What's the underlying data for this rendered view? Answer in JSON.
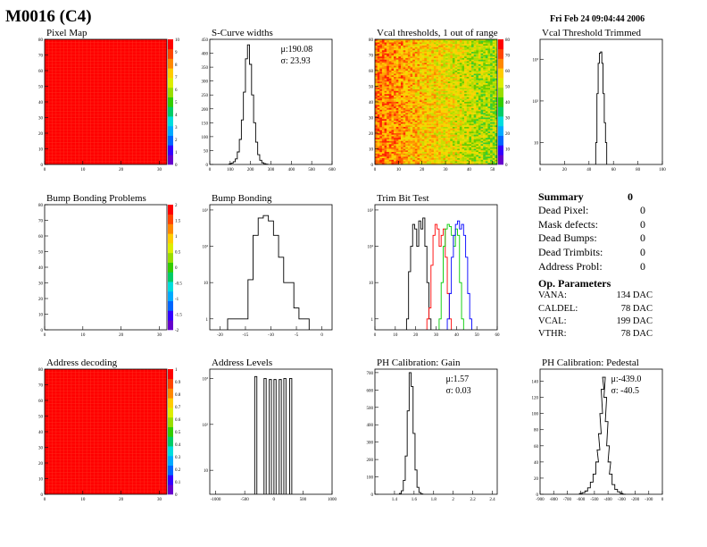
{
  "header": {
    "title": "M0016 (C4)",
    "date": "Fri Feb 24 09:04:44 2006"
  },
  "summary": {
    "title": "Summary",
    "total": "0",
    "rows": [
      {
        "label": "Dead Pixel:",
        "value": "0"
      },
      {
        "label": "Mask defects:",
        "value": "0"
      },
      {
        "label": "Dead Bumps:",
        "value": "0"
      },
      {
        "label": "Dead Trimbits:",
        "value": "0"
      },
      {
        "label": "Address Probl:",
        "value": "0"
      }
    ],
    "op_title": "Op. Parameters",
    "op_rows": [
      {
        "label": "VANA:",
        "value": "134 DAC"
      },
      {
        "label": "CALDEL:",
        "value": "78 DAC"
      },
      {
        "label": "VCAL:",
        "value": "199 DAC"
      },
      {
        "label": "VTHR:",
        "value": "78 DAC"
      }
    ]
  },
  "chart_data": [
    {
      "id": "pixel-map",
      "type": "heatmap",
      "title": "Pixel Map",
      "xlim": [
        0,
        32
      ],
      "ylim": [
        0,
        80
      ],
      "xticks": [
        0,
        10,
        20,
        30
      ],
      "yticks": [
        0,
        10,
        20,
        30,
        40,
        50,
        60,
        70,
        80
      ],
      "fill": "uniform-max",
      "zlim": [
        0,
        10
      ],
      "zticks": [
        0,
        1,
        2,
        3,
        4,
        5,
        6,
        7,
        8,
        9,
        10
      ]
    },
    {
      "id": "scurve-widths",
      "type": "histogram",
      "title": "S-Curve widths",
      "xlim": [
        0,
        600
      ],
      "ylim": [
        0,
        450
      ],
      "xticks": [
        0,
        100,
        200,
        300,
        400,
        500,
        600
      ],
      "yticks": [
        0,
        50,
        100,
        150,
        200,
        250,
        300,
        350,
        400,
        450
      ],
      "stats": [
        "μ:190.08",
        "σ: 23.93"
      ],
      "series": [
        {
          "color": "#000000",
          "x": [
            100,
            110,
            120,
            130,
            140,
            150,
            160,
            170,
            180,
            190,
            200,
            210,
            220,
            230,
            240,
            250,
            260,
            270,
            280
          ],
          "values": [
            2,
            5,
            10,
            20,
            45,
            90,
            160,
            260,
            380,
            430,
            360,
            250,
            150,
            80,
            35,
            15,
            6,
            3,
            1
          ]
        }
      ]
    },
    {
      "id": "vcal-thresholds",
      "type": "heatmap",
      "title": "Vcal thresholds, 1 out of range",
      "xlim": [
        0,
        52
      ],
      "ylim": [
        0,
        80
      ],
      "xticks": [
        0,
        10,
        20,
        30,
        40,
        50
      ],
      "yticks": [
        0,
        10,
        20,
        30,
        40,
        50,
        60,
        70,
        80
      ],
      "fill": "random-gradient",
      "zlim": [
        0,
        80
      ],
      "zticks": [
        0,
        10,
        20,
        30,
        40,
        50,
        60,
        70,
        80
      ]
    },
    {
      "id": "vcal-threshold-trimmed",
      "type": "histogram",
      "title": "Vcal Threshold Trimmed",
      "xlim": [
        0,
        100
      ],
      "ylog": true,
      "ylim": [
        3,
        3000
      ],
      "xticks": [
        0,
        20,
        40,
        60,
        80,
        100
      ],
      "yticks": [
        10,
        100,
        1000
      ],
      "yticklabels": [
        "10",
        "10²",
        "10³"
      ],
      "series": [
        {
          "color": "#000000",
          "x": [
            46,
            47,
            48,
            49,
            50,
            51,
            52,
            53,
            54
          ],
          "values": [
            10,
            150,
            800,
            1400,
            1500,
            800,
            150,
            30,
            10
          ]
        }
      ]
    },
    {
      "id": "bump-bonding-problems",
      "type": "heatmap",
      "title": "Bump Bonding Problems",
      "xlim": [
        0,
        32
      ],
      "ylim": [
        0,
        80
      ],
      "xticks": [
        0,
        10,
        20,
        30
      ],
      "yticks": [
        0,
        10,
        20,
        30,
        40,
        50,
        60,
        70,
        80
      ],
      "fill": "empty",
      "zlim": [
        -2,
        2
      ],
      "zticks": [
        -2,
        -1.5,
        -1,
        -0.5,
        0,
        0.5,
        1,
        1.5,
        2
      ],
      "zticklabels": [
        "-2",
        "-1.5",
        "-1",
        "-0.5",
        "0",
        "0.5",
        "1",
        "1.5",
        "2"
      ]
    },
    {
      "id": "bump-bonding",
      "type": "histogram",
      "title": "Bump Bonding",
      "xlim": [
        -22,
        2
      ],
      "ylog": true,
      "ylim": [
        0.5,
        1400
      ],
      "xticks": [
        -20,
        -15,
        -10,
        -5,
        0
      ],
      "xticklabels": [
        "-20",
        "-15",
        "-10",
        "-5",
        "0"
      ],
      "yticks": [
        1,
        10,
        100,
        1000
      ],
      "yticklabels": [
        "1",
        "10",
        "10²",
        "10³"
      ],
      "series": [
        {
          "color": "#000000",
          "x": [
            -18,
            -17,
            -16,
            -15,
            -14,
            -13,
            -12,
            -11,
            -10,
            -9,
            -8,
            -7,
            -6,
            -5,
            -4,
            -3
          ],
          "values": [
            1,
            1,
            1,
            1,
            12,
            200,
            600,
            700,
            500,
            200,
            50,
            10,
            10,
            2,
            1,
            1
          ]
        }
      ]
    },
    {
      "id": "trim-bit-test",
      "type": "histogram",
      "title": "Trim Bit Test",
      "xlim": [
        0,
        60
      ],
      "ylog": true,
      "ylim": [
        0.5,
        1400
      ],
      "xticks": [
        0,
        10,
        20,
        30,
        40,
        50,
        60
      ],
      "yticks": [
        1,
        10,
        100,
        1000
      ],
      "yticklabels": [
        "1",
        "10",
        "10²",
        "10³"
      ],
      "series": [
        {
          "color": "#000000",
          "x": [
            16,
            17,
            18,
            19,
            20,
            21,
            22,
            23,
            24,
            25,
            26,
            27
          ],
          "values": [
            1,
            20,
            100,
            400,
            300,
            100,
            500,
            300,
            600,
            100,
            10,
            1
          ]
        },
        {
          "color": "#ff0000",
          "x": [
            26,
            27,
            28,
            29,
            30,
            31,
            32,
            33,
            34,
            35,
            36,
            37
          ],
          "values": [
            1,
            2,
            30,
            200,
            400,
            300,
            100,
            200,
            300,
            50,
            5,
            1
          ]
        },
        {
          "color": "#00cc00",
          "x": [
            32,
            33,
            34,
            35,
            36,
            37,
            38,
            39,
            40,
            41,
            42,
            43
          ],
          "values": [
            1,
            10,
            100,
            300,
            400,
            350,
            200,
            100,
            300,
            200,
            10,
            1
          ]
        },
        {
          "color": "#0000ff",
          "x": [
            36,
            37,
            38,
            39,
            40,
            41,
            42,
            43,
            44,
            45,
            46,
            47
          ],
          "values": [
            1,
            5,
            50,
            200,
            400,
            500,
            300,
            400,
            200,
            50,
            5,
            1
          ]
        }
      ]
    },
    {
      "id": "address-decoding",
      "type": "heatmap",
      "title": "Address decoding",
      "xlim": [
        0,
        32
      ],
      "ylim": [
        0,
        80
      ],
      "xticks": [
        0,
        10,
        20,
        30
      ],
      "yticks": [
        0,
        10,
        20,
        30,
        40,
        50,
        60,
        70,
        80
      ],
      "fill": "uniform-max",
      "zlim": [
        0,
        1
      ],
      "zticks": [
        0,
        0.1,
        0.2,
        0.3,
        0.4,
        0.5,
        0.6,
        0.7,
        0.8,
        0.9,
        1
      ],
      "zticklabels": [
        "0",
        "0.1",
        "0.2",
        "0.3",
        "0.4",
        "0.5",
        "0.6",
        "0.7",
        "0.8",
        "0.9",
        "1"
      ]
    },
    {
      "id": "address-levels",
      "type": "histogram",
      "title": "Address Levels",
      "xlim": [
        -1100,
        1000
      ],
      "ylog": true,
      "ylim": [
        3,
        1600
      ],
      "xticks": [
        -1000,
        -500,
        0,
        500,
        1000
      ],
      "xticklabels": [
        "-1000",
        "-500",
        "0",
        "500",
        "1000"
      ],
      "yticks": [
        10,
        100,
        1000
      ],
      "yticklabels": [
        "10",
        "10²",
        "10³"
      ],
      "series": [
        {
          "color": "#000000",
          "x": [
            -310,
            -150,
            -60,
            20,
            110,
            190,
            290
          ],
          "values": [
            1100,
            1000,
            950,
            950,
            950,
            1000,
            1000
          ]
        }
      ]
    },
    {
      "id": "ph-calibration-gain",
      "type": "histogram",
      "title": "PH Calibration: Gain",
      "xlim": [
        1.2,
        2.45
      ],
      "ylim": [
        0,
        720
      ],
      "xticks": [
        1.2,
        1.4,
        1.6,
        1.8,
        2.0,
        2.2,
        2.4
      ],
      "xticklabels": [
        "",
        "1.4",
        "1.6",
        "1.8",
        "2",
        "2.2",
        "2.4"
      ],
      "yticks": [
        0,
        100,
        200,
        300,
        400,
        500,
        600,
        700
      ],
      "stats": [
        "μ:1.57",
        "σ: 0.03"
      ],
      "series": [
        {
          "color": "#000000",
          "x": [
            1.46,
            1.48,
            1.5,
            1.52,
            1.54,
            1.56,
            1.58,
            1.6,
            1.62,
            1.64,
            1.66,
            1.68
          ],
          "values": [
            5,
            20,
            80,
            220,
            480,
            700,
            620,
            350,
            140,
            40,
            10,
            2
          ]
        }
      ]
    },
    {
      "id": "ph-calibration-pedestal",
      "type": "histogram",
      "title": "PH Calibration: Pedestal",
      "xlim": [
        -900,
        0
      ],
      "ylim": [
        0,
        155
      ],
      "xticks": [
        -900,
        -800,
        -700,
        -600,
        -500,
        -400,
        -300,
        -200,
        -100,
        0
      ],
      "yticks": [
        0,
        20,
        40,
        60,
        80,
        100,
        120,
        140
      ],
      "stats": [
        "μ:-439.0",
        "σ: -40.5"
      ],
      "series": [
        {
          "color": "#000000",
          "x": [
            -600,
            -580,
            -560,
            -540,
            -520,
            -500,
            -480,
            -470,
            -460,
            -450,
            -440,
            -430,
            -420,
            -410,
            -400,
            -390,
            -380,
            -360,
            -340,
            -320,
            -300,
            -280
          ],
          "values": [
            1,
            2,
            4,
            8,
            15,
            25,
            40,
            55,
            75,
            100,
            130,
            145,
            120,
            90,
            60,
            40,
            25,
            12,
            6,
            3,
            1,
            0
          ]
        }
      ]
    }
  ]
}
